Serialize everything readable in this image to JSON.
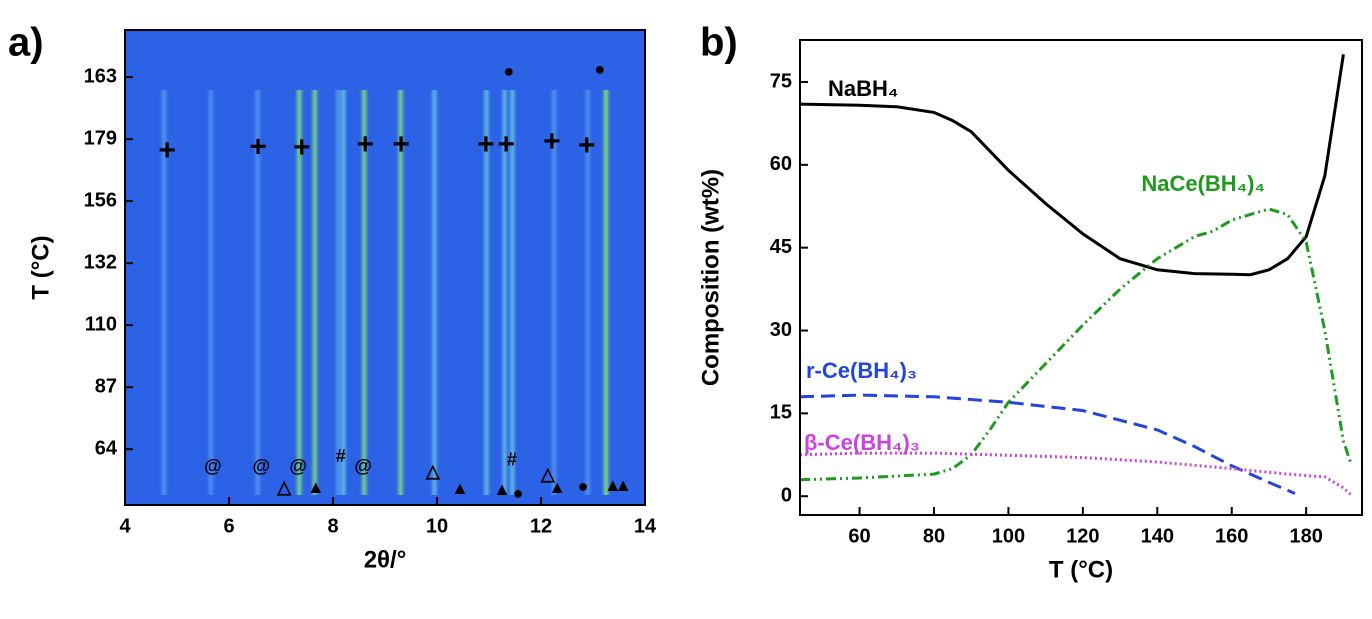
{
  "chart_data": [
    {
      "type": "heatmap",
      "panel_label": "a)",
      "xlabel": "2θ/°",
      "ylabel": "T (°C)",
      "xlim": [
        4,
        14
      ],
      "xticks": [
        4,
        6,
        8,
        10,
        12,
        14
      ],
      "ylim": [
        -0.9,
        6.76
      ],
      "yticks": [
        {
          "value": 0,
          "label": "64"
        },
        {
          "value": 1,
          "label": "87"
        },
        {
          "value": 2,
          "label": "110"
        },
        {
          "value": 3,
          "label": "132"
        },
        {
          "value": 4,
          "label": "156"
        },
        {
          "value": 5,
          "label": "179"
        },
        {
          "value": 6,
          "label": "163"
        }
      ],
      "background": "#2b62e6",
      "peaks": [
        {
          "x": 4.75,
          "intensity": 0.5
        },
        {
          "x": 5.65,
          "intensity": 0.35
        },
        {
          "x": 6.55,
          "intensity": 0.45
        },
        {
          "x": 7.35,
          "intensity": 0.9
        },
        {
          "x": 7.65,
          "intensity": 0.85
        },
        {
          "x": 8.1,
          "intensity": 0.5
        },
        {
          "x": 8.2,
          "intensity": 0.6
        },
        {
          "x": 8.6,
          "intensity": 0.85
        },
        {
          "x": 9.3,
          "intensity": 0.85
        },
        {
          "x": 9.95,
          "intensity": 0.55
        },
        {
          "x": 10.95,
          "intensity": 0.6
        },
        {
          "x": 11.3,
          "intensity": 0.55
        },
        {
          "x": 11.45,
          "intensity": 0.6
        },
        {
          "x": 12.25,
          "intensity": 0.45
        },
        {
          "x": 12.9,
          "intensity": 0.4
        },
        {
          "x": 13.25,
          "intensity": 1.0
        }
      ],
      "markers": [
        {
          "text": "+",
          "x": 4.81,
          "y": 4.79
        },
        {
          "text": "+",
          "x": 6.56,
          "y": 4.85
        },
        {
          "text": "+",
          "x": 7.4,
          "y": 4.84
        },
        {
          "text": "+",
          "x": 8.62,
          "y": 4.89
        },
        {
          "text": "+",
          "x": 9.31,
          "y": 4.89
        },
        {
          "text": "+",
          "x": 10.94,
          "y": 4.89
        },
        {
          "text": "+",
          "x": 11.33,
          "y": 4.89
        },
        {
          "text": "+",
          "x": 12.21,
          "y": 4.94
        },
        {
          "text": "+",
          "x": 12.88,
          "y": 4.87
        },
        {
          "text": "●",
          "x": 11.38,
          "y": 6.08
        },
        {
          "text": "●",
          "x": 13.13,
          "y": 6.11
        },
        {
          "text": "●",
          "x": 11.56,
          "y": -0.73
        },
        {
          "text": "●",
          "x": 12.81,
          "y": -0.61
        },
        {
          "text": "▲",
          "x": 7.67,
          "y": -0.63
        },
        {
          "text": "▲",
          "x": 10.44,
          "y": -0.65
        },
        {
          "text": "▲",
          "x": 11.25,
          "y": -0.66
        },
        {
          "text": "▲",
          "x": 12.31,
          "y": -0.63
        },
        {
          "text": "▲",
          "x": 13.38,
          "y": -0.6
        },
        {
          "text": "▲",
          "x": 13.58,
          "y": -0.6
        },
        {
          "text": "△",
          "x": 7.06,
          "y": -0.63
        },
        {
          "text": "△",
          "x": 9.92,
          "y": -0.37
        },
        {
          "text": "△",
          "x": 12.13,
          "y": -0.42
        },
        {
          "text": "@",
          "x": 5.69,
          "y": -0.29
        },
        {
          "text": "@",
          "x": 6.62,
          "y": -0.29
        },
        {
          "text": "@",
          "x": 7.33,
          "y": -0.29
        },
        {
          "text": "@",
          "x": 8.58,
          "y": -0.29
        },
        {
          "text": "#",
          "x": 8.15,
          "y": -0.13
        },
        {
          "text": "#",
          "x": 11.44,
          "y": -0.19
        }
      ]
    },
    {
      "type": "line",
      "panel_label": "b)",
      "xlabel": "T (°C)",
      "ylabel": "Composition (wt%)",
      "xlim": [
        44,
        195
      ],
      "xticks": [
        60,
        80,
        100,
        120,
        140,
        160,
        180
      ],
      "ylim": [
        -3.4,
        82.6
      ],
      "yticks": [
        0,
        15,
        30,
        45,
        60,
        75
      ],
      "series": [
        {
          "name": "NaBH₄",
          "color": "#000000",
          "dash": "solid",
          "x": [
            44,
            60,
            70,
            80,
            85,
            90,
            100,
            110,
            120,
            130,
            140,
            150,
            160,
            165,
            170,
            175,
            180,
            185,
            190
          ],
          "values": [
            71,
            70.8,
            70.5,
            69.5,
            68,
            66,
            59,
            53,
            47.5,
            43,
            41,
            40.3,
            40.2,
            40.1,
            41,
            43,
            47,
            58,
            80
          ]
        },
        {
          "name": "NaCe(BH₄)₄",
          "color": "#1f9a1f",
          "dash": "dashdot",
          "x": [
            44,
            60,
            80,
            85,
            90,
            95,
            100,
            110,
            120,
            130,
            140,
            150,
            155,
            160,
            170,
            175,
            180,
            185,
            190,
            192
          ],
          "values": [
            3,
            3.3,
            4,
            5,
            7.5,
            12,
            17,
            24,
            31,
            37.5,
            43,
            47,
            48,
            50,
            52,
            51,
            46,
            30,
            10,
            6
          ]
        },
        {
          "name": "r-Ce(BH₄)₃",
          "color": "#2344dd",
          "dash": "dashed",
          "x": [
            44,
            60,
            80,
            100,
            120,
            140,
            150,
            160,
            170,
            177
          ],
          "values": [
            18,
            18.3,
            18,
            17,
            15.5,
            12,
            9,
            5.5,
            2.5,
            0.5
          ]
        },
        {
          "name": "β-Ce(BH₄)₃",
          "color": "#cc44dd",
          "dash": "dotted",
          "x": [
            44,
            60,
            80,
            100,
            120,
            140,
            160,
            175,
            185,
            190,
            192
          ],
          "values": [
            7.5,
            7.8,
            7.8,
            7.4,
            7,
            6.2,
            5,
            4,
            3.5,
            1.5,
            0.3
          ]
        }
      ]
    }
  ]
}
